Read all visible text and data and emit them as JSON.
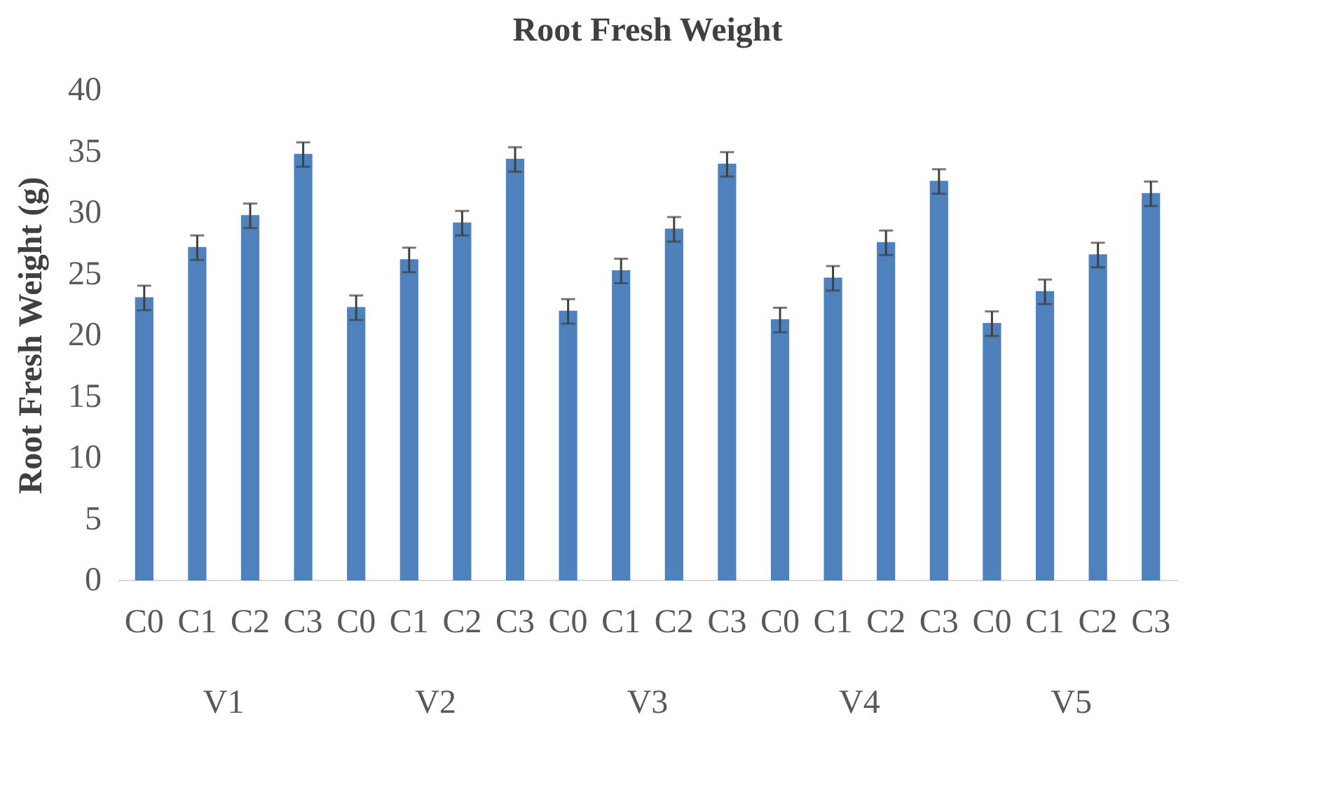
{
  "chart_data": {
    "type": "bar",
    "title": "Root Fresh Weight",
    "ylabel": "Root Fresh Weight (g)",
    "categories": [
      "C0",
      "C1",
      "C2",
      "C3",
      "C0",
      "C1",
      "C2",
      "C3",
      "C0",
      "C1",
      "C2",
      "C3",
      "C0",
      "C1",
      "C2",
      "C3",
      "C0",
      "C1",
      "C2",
      "C3"
    ],
    "annotations": [
      "V1",
      "V2",
      "V3",
      "V4",
      "V5"
    ],
    "values": [
      23.0,
      27.1,
      29.7,
      34.7,
      22.2,
      26.1,
      29.1,
      34.3,
      21.9,
      25.2,
      28.6,
      33.9,
      21.2,
      24.6,
      27.5,
      32.5,
      20.9,
      23.5,
      26.5,
      31.5
    ],
    "errors": [
      1,
      1,
      1,
      1,
      1,
      1,
      1,
      1,
      1,
      1,
      1,
      1,
      1,
      1,
      1,
      1,
      1,
      1,
      1,
      1
    ],
    "color": "#4f81bd",
    "ylim": [
      0,
      40
    ],
    "yticks": [
      0,
      5,
      10,
      15,
      20,
      25,
      30,
      35,
      40
    ],
    "grid": false
  }
}
